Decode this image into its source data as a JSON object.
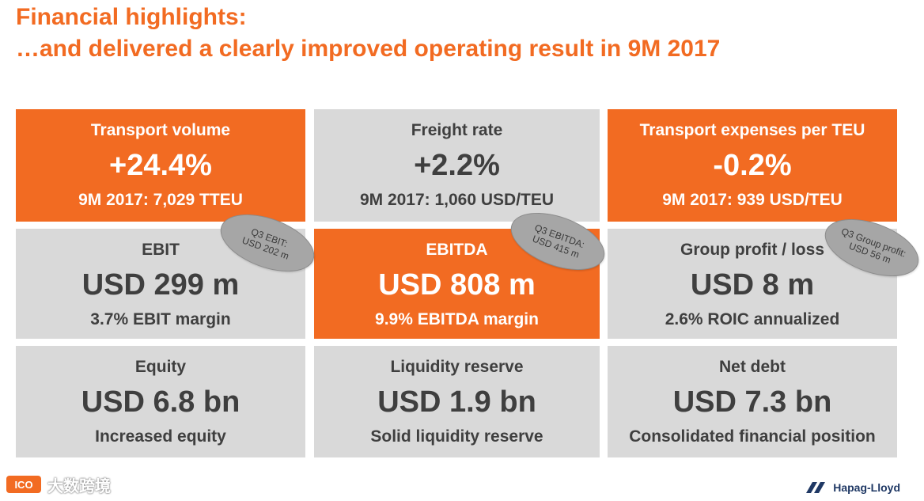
{
  "header": {
    "line1": "Financial highlights:",
    "line2": "…and delivered a clearly improved operating result in 9M 2017"
  },
  "tiles": [
    {
      "label": "Transport volume",
      "value": "+24.4%",
      "sub": "9M 2017: 7,029 TTEU",
      "style": "orange"
    },
    {
      "label": "Freight rate",
      "value": "+2.2%",
      "sub": "9M 2017: 1,060 USD/TEU",
      "style": "gray"
    },
    {
      "label": "Transport expenses per TEU",
      "value": "-0.2%",
      "sub": "9M 2017: 939 USD/TEU",
      "style": "orange"
    },
    {
      "label": "EBIT",
      "value": "USD 299 m",
      "sub": "3.7% EBIT margin",
      "style": "gray"
    },
    {
      "label": "EBITDA",
      "value": "USD 808 m",
      "sub": "9.9% EBITDA margin",
      "style": "orange"
    },
    {
      "label": "Group profit / loss",
      "value": "USD 8 m",
      "sub": "2.6% ROIC annualized",
      "style": "gray"
    },
    {
      "label": "Equity",
      "value": "USD 6.8 bn",
      "sub": "Increased equity",
      "style": "gray"
    },
    {
      "label": "Liquidity reserve",
      "value": "USD 1.9 bn",
      "sub": "Solid liquidity reserve",
      "style": "gray"
    },
    {
      "label": "Net debt",
      "value": "USD 7.3 bn",
      "sub": "Consolidated financial position",
      "style": "gray"
    }
  ],
  "bubbles": [
    {
      "line1": "Q3 EBIT:",
      "line2": "USD 202 m"
    },
    {
      "line1": "Q3 EBITDA:",
      "line2": "USD 415 m"
    },
    {
      "line1": "Q3 Group profit:",
      "line2": "USD 56 m"
    }
  ],
  "footer": {
    "watermark_mark": "ICO",
    "watermark_text": "大数跨境",
    "logo_text": "Hapag-Lloyd"
  },
  "colors": {
    "orange": "#f26b22",
    "gray_tile": "#d9d9d9",
    "dark_text": "#3f3f3f",
    "bubble": "#a6a6a6",
    "logo_blue": "#1f3864"
  },
  "icons": [
    "watermark-logo-icon",
    "hapag-lloyd-logo-icon"
  ]
}
